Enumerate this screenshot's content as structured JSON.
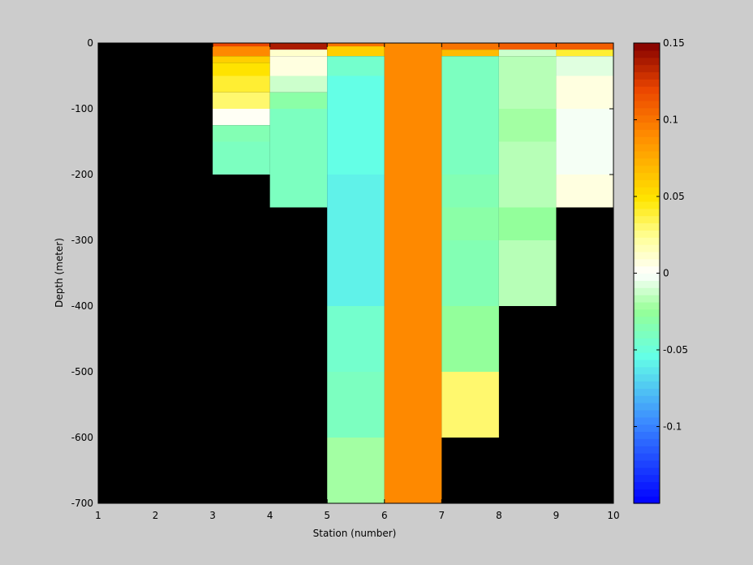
{
  "chart_data": {
    "type": "heatmap",
    "xlabel": "Station (number)",
    "ylabel": "Depth (meter)",
    "xlim": [
      1,
      10
    ],
    "ylim": [
      -700,
      0
    ],
    "x_ticks": [
      "1",
      "2",
      "3",
      "4",
      "5",
      "6",
      "7",
      "8",
      "9",
      "10"
    ],
    "y_ticks": [
      "0",
      "-100",
      "-200",
      "-300",
      "-400",
      "-500",
      "-600",
      "-700"
    ],
    "colorbar": {
      "range": [
        -0.15,
        0.15
      ],
      "ticks": [
        "0.15",
        "0.1",
        "0.05",
        "0",
        "-0.05",
        "-0.1"
      ],
      "colormap": "jet-white-center",
      "levels": 64
    },
    "background_color": "#000000",
    "cells": [
      {
        "x0": 3,
        "x1": 4,
        "y0": -5,
        "y1": 0,
        "v": 0.12
      },
      {
        "x0": 3,
        "x1": 4,
        "y0": -20,
        "y1": -5,
        "v": 0.09
      },
      {
        "x0": 3,
        "x1": 4,
        "y0": -30,
        "y1": -20,
        "v": 0.06
      },
      {
        "x0": 3,
        "x1": 4,
        "y0": -50,
        "y1": -30,
        "v": 0.05
      },
      {
        "x0": 3,
        "x1": 4,
        "y0": -75,
        "y1": -50,
        "v": 0.04
      },
      {
        "x0": 3,
        "x1": 4,
        "y0": -100,
        "y1": -75,
        "v": 0.03
      },
      {
        "x0": 3,
        "x1": 4,
        "y0": -125,
        "y1": -100,
        "v": 0.0
      },
      {
        "x0": 3,
        "x1": 4,
        "y0": -150,
        "y1": -125,
        "v": -0.035
      },
      {
        "x0": 3,
        "x1": 4,
        "y0": -200,
        "y1": -150,
        "v": -0.04
      },
      {
        "x0": 4,
        "x1": 5,
        "y0": -10,
        "y1": 0,
        "v": 0.14
      },
      {
        "x0": 4,
        "x1": 5,
        "y0": -20,
        "y1": -10,
        "v": 0.01
      },
      {
        "x0": 4,
        "x1": 5,
        "y0": -50,
        "y1": -20,
        "v": 0.005
      },
      {
        "x0": 4,
        "x1": 5,
        "y0": -75,
        "y1": -50,
        "v": -0.01
      },
      {
        "x0": 4,
        "x1": 5,
        "y0": -100,
        "y1": -75,
        "v": -0.03
      },
      {
        "x0": 4,
        "x1": 5,
        "y0": -150,
        "y1": -100,
        "v": -0.04
      },
      {
        "x0": 4,
        "x1": 5,
        "y0": -200,
        "y1": -150,
        "v": -0.04
      },
      {
        "x0": 4,
        "x1": 5,
        "y0": -250,
        "y1": -200,
        "v": -0.038
      },
      {
        "x0": 5,
        "x1": 6,
        "y0": -5,
        "y1": 0,
        "v": 0.1
      },
      {
        "x0": 5,
        "x1": 6,
        "y0": -20,
        "y1": -5,
        "v": 0.06
      },
      {
        "x0": 5,
        "x1": 6,
        "y0": -50,
        "y1": -20,
        "v": -0.045
      },
      {
        "x0": 5,
        "x1": 6,
        "y0": -100,
        "y1": -50,
        "v": -0.055
      },
      {
        "x0": 5,
        "x1": 6,
        "y0": -150,
        "y1": -100,
        "v": -0.055
      },
      {
        "x0": 5,
        "x1": 6,
        "y0": -200,
        "y1": -150,
        "v": -0.053
      },
      {
        "x0": 5,
        "x1": 6,
        "y0": -250,
        "y1": -200,
        "v": -0.058
      },
      {
        "x0": 5,
        "x1": 6,
        "y0": -300,
        "y1": -250,
        "v": -0.06
      },
      {
        "x0": 5,
        "x1": 6,
        "y0": -400,
        "y1": -300,
        "v": -0.06
      },
      {
        "x0": 5,
        "x1": 6,
        "y0": -500,
        "y1": -400,
        "v": -0.045
      },
      {
        "x0": 5,
        "x1": 6,
        "y0": -600,
        "y1": -500,
        "v": -0.038
      },
      {
        "x0": 5,
        "x1": 6,
        "y0": -700,
        "y1": -600,
        "v": -0.02
      },
      {
        "x0": 6,
        "x1": 7,
        "y0": -700,
        "y1": 0,
        "v": 0.093
      },
      {
        "x0": 7,
        "x1": 8,
        "y0": -10,
        "y1": 0,
        "v": 0.1
      },
      {
        "x0": 7,
        "x1": 8,
        "y0": -20,
        "y1": -10,
        "v": 0.07
      },
      {
        "x0": 7,
        "x1": 8,
        "y0": -50,
        "y1": -20,
        "v": -0.04
      },
      {
        "x0": 7,
        "x1": 8,
        "y0": -100,
        "y1": -50,
        "v": -0.042
      },
      {
        "x0": 7,
        "x1": 8,
        "y0": -200,
        "y1": -100,
        "v": -0.04
      },
      {
        "x0": 7,
        "x1": 8,
        "y0": -250,
        "y1": -200,
        "v": -0.036
      },
      {
        "x0": 7,
        "x1": 8,
        "y0": -300,
        "y1": -250,
        "v": -0.032
      },
      {
        "x0": 7,
        "x1": 8,
        "y0": -400,
        "y1": -300,
        "v": -0.034
      },
      {
        "x0": 7,
        "x1": 8,
        "y0": -500,
        "y1": -400,
        "v": -0.025
      },
      {
        "x0": 7,
        "x1": 8,
        "y0": -600,
        "y1": -500,
        "v": 0.03
      },
      {
        "x0": 8,
        "x1": 9,
        "y0": -10,
        "y1": 0,
        "v": 0.11
      },
      {
        "x0": 8,
        "x1": 9,
        "y0": -20,
        "y1": -10,
        "v": -0.012
      },
      {
        "x0": 8,
        "x1": 9,
        "y0": -100,
        "y1": -20,
        "v": -0.015
      },
      {
        "x0": 8,
        "x1": 9,
        "y0": -150,
        "y1": -100,
        "v": -0.022
      },
      {
        "x0": 8,
        "x1": 9,
        "y0": -250,
        "y1": -150,
        "v": -0.015
      },
      {
        "x0": 8,
        "x1": 9,
        "y0": -300,
        "y1": -250,
        "v": -0.025
      },
      {
        "x0": 8,
        "x1": 9,
        "y0": -400,
        "y1": -300,
        "v": -0.015
      },
      {
        "x0": 9,
        "x1": 10,
        "y0": -10,
        "y1": 0,
        "v": 0.11
      },
      {
        "x0": 9,
        "x1": 10,
        "y0": -20,
        "y1": -10,
        "v": 0.04
      },
      {
        "x0": 9,
        "x1": 10,
        "y0": -50,
        "y1": -20,
        "v": -0.006
      },
      {
        "x0": 9,
        "x1": 10,
        "y0": -100,
        "y1": -50,
        "v": 0.006
      },
      {
        "x0": 9,
        "x1": 10,
        "y0": -200,
        "y1": -100,
        "v": -0.004
      },
      {
        "x0": 9,
        "x1": 10,
        "y0": -250,
        "y1": -200,
        "v": 0.005
      }
    ]
  }
}
